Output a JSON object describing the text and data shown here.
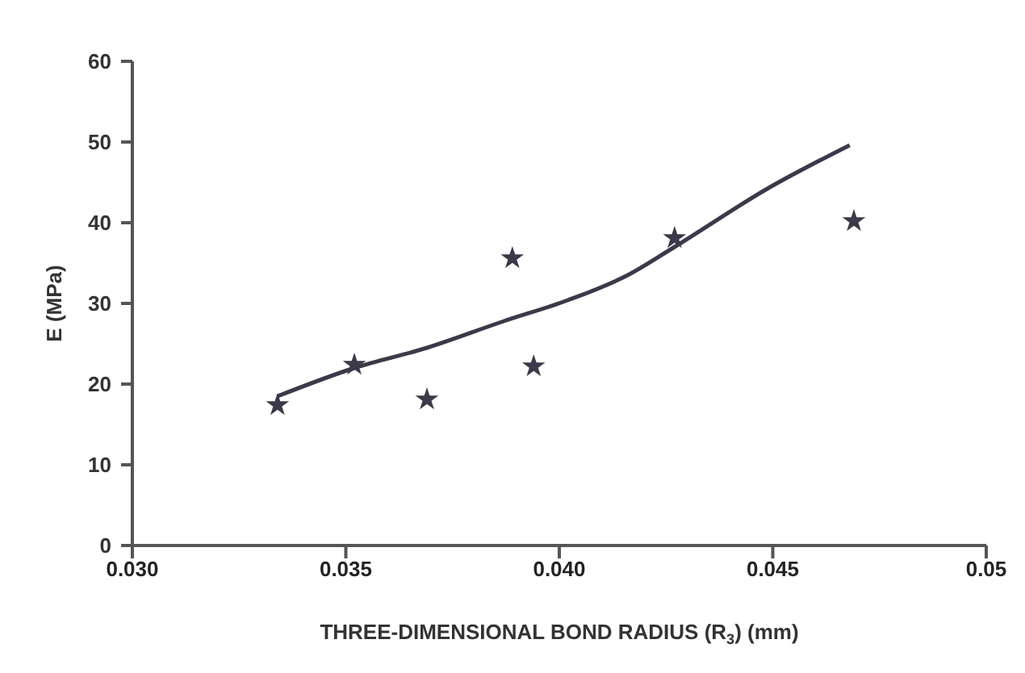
{
  "chart_data": {
    "type": "scatter",
    "xlabel": "THREE-DIMENSIONAL BOND RADIUS (R$_{3}$) (mm)",
    "ylabel": "E (MPa)",
    "xlim": [
      0.03,
      0.05
    ],
    "xticks": [
      {
        "value": 0.03,
        "label": "0.030"
      },
      {
        "value": 0.035,
        "label": "0.035"
      },
      {
        "value": 0.04,
        "label": "0.040"
      },
      {
        "value": 0.045,
        "label": "0.045"
      },
      {
        "value": 0.05,
        "label": "0.05"
      }
    ],
    "ylim": [
      0,
      60
    ],
    "yticks": [
      0,
      10,
      20,
      30,
      40,
      50,
      60
    ],
    "series": [
      {
        "type": "scatter",
        "color": "#3a3a48",
        "marker": "star",
        "x": [
          0.0334,
          0.0352,
          0.0369,
          0.0389,
          0.0394,
          0.0427,
          0.0469
        ],
        "values": [
          17.4,
          22.4,
          18.1,
          35.6,
          22.2,
          38.1,
          40.2
        ]
      },
      {
        "type": "line",
        "color": "#3a3a48",
        "marker": "none",
        "line_style": "solid",
        "x": [
          0.0334,
          0.0352,
          0.0369,
          0.0387,
          0.0402,
          0.0416,
          0.0427,
          0.0449,
          0.0468
        ],
        "values": [
          18.5,
          22,
          24.5,
          27.8,
          30.4,
          33.5,
          37,
          44.3,
          49.6
        ]
      }
    ]
  }
}
